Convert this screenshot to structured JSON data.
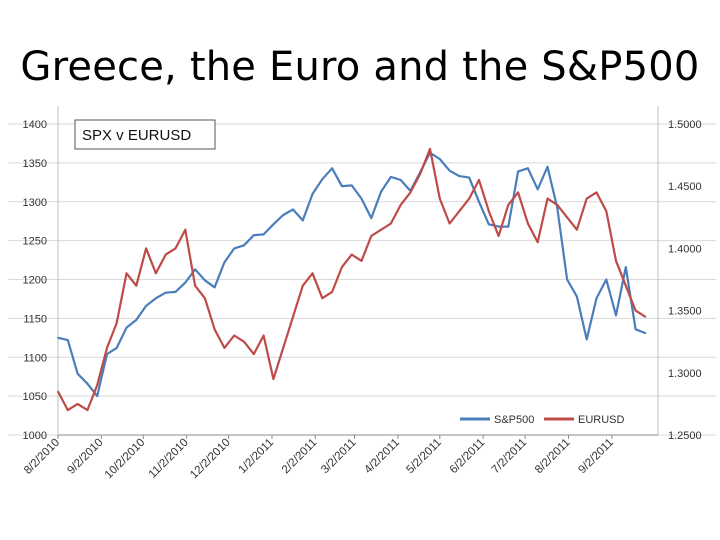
{
  "slide": {
    "title": "Greece, the Euro and the S&P500"
  },
  "chart_data": {
    "type": "line",
    "title": "SPX v EURUSD",
    "y_left": {
      "ticks": [
        "1000",
        "1050",
        "1100",
        "1150",
        "1200",
        "1250",
        "1300",
        "1350",
        "1400"
      ],
      "lim": [
        1000,
        1400
      ]
    },
    "y_right": {
      "ticks": [
        "1.2500",
        "1.3000",
        "1.3500",
        "1.4000",
        "1.4500",
        "1.5000"
      ],
      "lim": [
        1.25,
        1.5
      ]
    },
    "x_ticks": [
      "8/2/2010",
      "9/2/2010",
      "10/2/2010",
      "11/2/2010",
      "12/2/2010",
      "1/2/2011",
      "2/2/2011",
      "3/2/2011",
      "4/2/2011",
      "5/2/2011",
      "6/2/2011",
      "7/2/2011",
      "8/2/2011",
      "9/2/2011"
    ],
    "grid": "horizontal",
    "legend": "bottom-right",
    "series": [
      {
        "name": "S&P500",
        "axis": "left",
        "color": "#4a7ebb",
        "x": [
          "2010-08-02",
          "2010-08-09",
          "2010-08-16",
          "2010-08-23",
          "2010-08-30",
          "2010-09-06",
          "2010-09-13",
          "2010-09-20",
          "2010-09-27",
          "2010-10-04",
          "2010-10-11",
          "2010-10-18",
          "2010-10-25",
          "2010-11-01",
          "2010-11-08",
          "2010-11-15",
          "2010-11-22",
          "2010-11-29",
          "2010-12-06",
          "2010-12-13",
          "2010-12-20",
          "2010-12-27",
          "2011-01-03",
          "2011-01-10",
          "2011-01-17",
          "2011-01-24",
          "2011-01-31",
          "2011-02-07",
          "2011-02-14",
          "2011-02-21",
          "2011-02-28",
          "2011-03-07",
          "2011-03-14",
          "2011-03-21",
          "2011-03-28",
          "2011-04-04",
          "2011-04-11",
          "2011-04-18",
          "2011-04-25",
          "2011-05-02",
          "2011-05-09",
          "2011-05-16",
          "2011-05-23",
          "2011-05-30",
          "2011-06-06",
          "2011-06-13",
          "2011-06-20",
          "2011-06-27",
          "2011-07-04",
          "2011-07-11",
          "2011-07-18",
          "2011-07-25",
          "2011-08-01",
          "2011-08-08",
          "2011-08-15",
          "2011-08-22",
          "2011-08-29",
          "2011-09-05",
          "2011-09-12",
          "2011-09-19",
          "2011-09-26"
        ],
        "values": [
          1125,
          1122,
          1079,
          1066,
          1050,
          1104,
          1112,
          1138,
          1148,
          1166,
          1176,
          1183,
          1184,
          1196,
          1213,
          1199,
          1190,
          1222,
          1240,
          1244,
          1257,
          1258,
          1271,
          1283,
          1290,
          1276,
          1310,
          1329,
          1343,
          1320,
          1321,
          1304,
          1279,
          1313,
          1332,
          1328,
          1314,
          1338,
          1363,
          1355,
          1340,
          1333,
          1331,
          1300,
          1271,
          1268,
          1268,
          1339,
          1343,
          1316,
          1345,
          1292,
          1200,
          1178,
          1123,
          1176,
          1200,
          1154,
          1216,
          1136,
          1131
        ]
      },
      {
        "name": "EURUSD",
        "axis": "right",
        "color": "#be4b48",
        "x": [
          "2010-08-02",
          "2010-08-09",
          "2010-08-16",
          "2010-08-23",
          "2010-08-30",
          "2010-09-06",
          "2010-09-13",
          "2010-09-20",
          "2010-09-27",
          "2010-10-04",
          "2010-10-11",
          "2010-10-18",
          "2010-10-25",
          "2010-11-01",
          "2010-11-08",
          "2010-11-15",
          "2010-11-22",
          "2010-11-29",
          "2010-12-06",
          "2010-12-13",
          "2010-12-20",
          "2010-12-27",
          "2011-01-03",
          "2011-01-10",
          "2011-01-17",
          "2011-01-24",
          "2011-01-31",
          "2011-02-07",
          "2011-02-14",
          "2011-02-21",
          "2011-02-28",
          "2011-03-07",
          "2011-03-14",
          "2011-03-21",
          "2011-03-28",
          "2011-04-04",
          "2011-04-11",
          "2011-04-18",
          "2011-04-25",
          "2011-05-02",
          "2011-05-09",
          "2011-05-16",
          "2011-05-23",
          "2011-05-30",
          "2011-06-06",
          "2011-06-13",
          "2011-06-20",
          "2011-06-27",
          "2011-07-04",
          "2011-07-11",
          "2011-07-18",
          "2011-07-25",
          "2011-08-01",
          "2011-08-08",
          "2011-08-15",
          "2011-08-22",
          "2011-08-29",
          "2011-09-05",
          "2011-09-12",
          "2011-09-19",
          "2011-09-26"
        ],
        "values": [
          1.285,
          1.27,
          1.275,
          1.27,
          1.29,
          1.32,
          1.34,
          1.38,
          1.37,
          1.4,
          1.38,
          1.395,
          1.4,
          1.415,
          1.37,
          1.36,
          1.335,
          1.32,
          1.33,
          1.325,
          1.315,
          1.33,
          1.295,
          1.32,
          1.345,
          1.37,
          1.38,
          1.36,
          1.365,
          1.385,
          1.395,
          1.39,
          1.41,
          1.415,
          1.42,
          1.435,
          1.445,
          1.46,
          1.48,
          1.44,
          1.42,
          1.43,
          1.44,
          1.455,
          1.43,
          1.41,
          1.435,
          1.445,
          1.42,
          1.405,
          1.44,
          1.435,
          1.425,
          1.415,
          1.44,
          1.445,
          1.43,
          1.39,
          1.37,
          1.35,
          1.345
        ]
      }
    ]
  }
}
